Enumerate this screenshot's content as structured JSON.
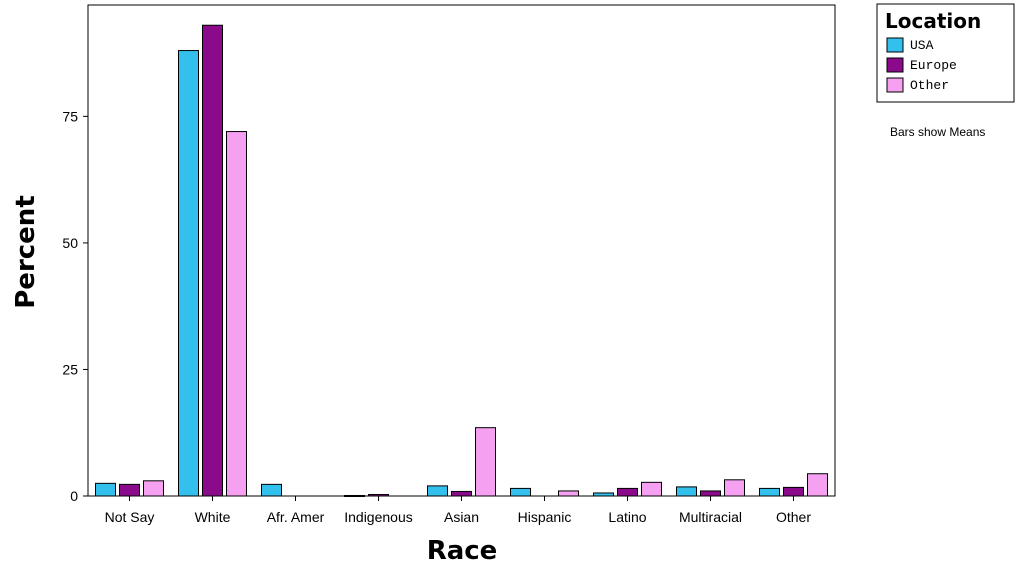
{
  "chart_data": {
    "type": "bar",
    "xlabel": "Race",
    "ylabel": "Percent",
    "ylim": [
      0,
      97
    ],
    "yticks": [
      0,
      25,
      50,
      75
    ],
    "grid": false,
    "legend_title": "Location",
    "legend_position": "top-right",
    "note": "Bars show Means",
    "categories": [
      "Not Say",
      "White",
      "Afr. Amer",
      "Indigenous",
      "Asian",
      "Hispanic",
      "Latino",
      "Multiracial",
      "Other"
    ],
    "series": [
      {
        "name": "USA",
        "color": "#33c0ec",
        "values": [
          2.5,
          88,
          2.3,
          0.1,
          2.0,
          1.5,
          0.6,
          1.8,
          1.5
        ]
      },
      {
        "name": "Europe",
        "color": "#8b0a8b",
        "values": [
          2.3,
          93,
          0,
          0.3,
          0.9,
          0,
          1.5,
          1.0,
          1.7
        ]
      },
      {
        "name": "Other",
        "color": "#f5a0f0",
        "values": [
          3.0,
          72,
          0,
          0,
          13.5,
          1.0,
          2.7,
          3.2,
          4.4
        ]
      }
    ]
  }
}
